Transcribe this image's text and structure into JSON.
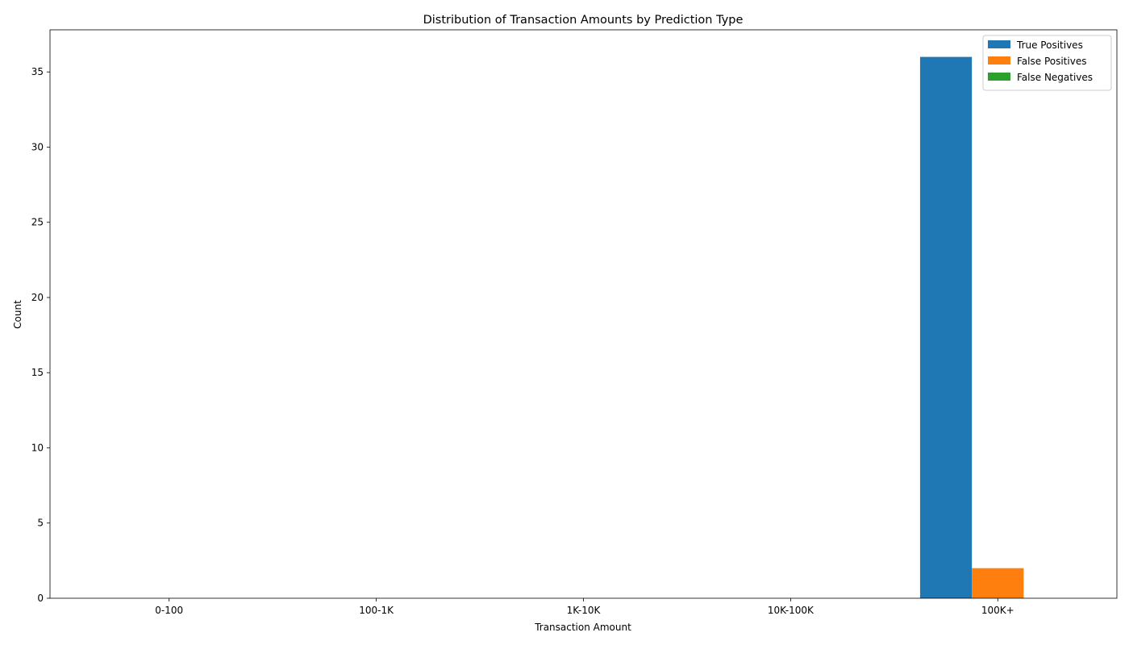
{
  "chart_data": {
    "type": "bar",
    "title": "Distribution of Transaction Amounts by Prediction Type",
    "xlabel": "Transaction Amount",
    "ylabel": "Count",
    "categories": [
      "0-100",
      "100-1K",
      "1K-10K",
      "10K-100K",
      "100K+"
    ],
    "series": [
      {
        "name": "True Positives",
        "color": "#1f77b4",
        "values": [
          0,
          0,
          0,
          0,
          36
        ]
      },
      {
        "name": "False Positives",
        "color": "#ff7f0e",
        "values": [
          0,
          0,
          0,
          0,
          2
        ]
      },
      {
        "name": "False Negatives",
        "color": "#2ca02c",
        "values": [
          0,
          0,
          0,
          0,
          0
        ]
      }
    ],
    "ylim": [
      0,
      37.8
    ],
    "yticks": [
      0,
      5,
      10,
      15,
      20,
      25,
      30,
      35
    ],
    "grid": false,
    "legend_position": "top-right"
  }
}
